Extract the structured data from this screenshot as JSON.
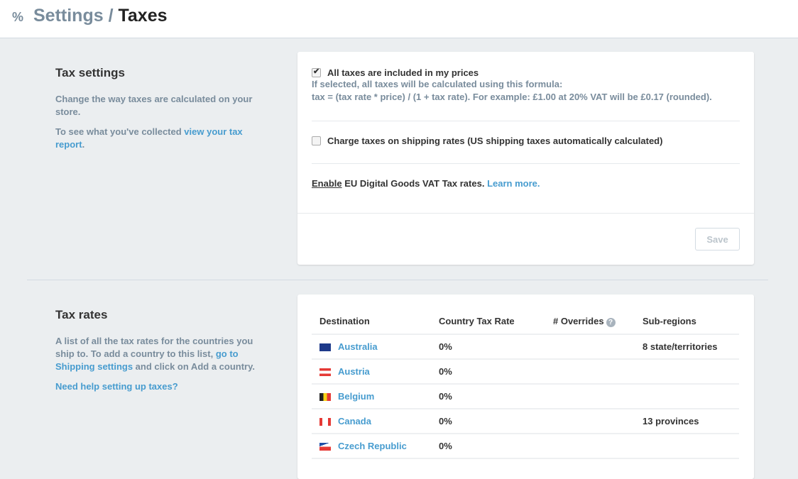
{
  "header": {
    "icon": "percent-icon",
    "crumb": "Settings",
    "separator": "/",
    "current": "Taxes"
  },
  "tax_settings": {
    "title": "Tax settings",
    "desc": "Change the way taxes are calculated on your store.",
    "collected_prefix": "To see what you've collected ",
    "collected_link": "view your tax report",
    "collected_suffix": "."
  },
  "options": {
    "included": {
      "label": "All taxes are included in my prices",
      "checked": true,
      "help1": "If selected, all taxes will be calculated using this formula:",
      "help2": "tax = (tax rate * price) / (1 + tax rate). For example: £1.00 at 20% VAT will be £0.17 (rounded)."
    },
    "shipping": {
      "label": "Charge taxes on shipping rates (US shipping taxes automatically calculated)",
      "checked": false
    },
    "eu": {
      "enable": "Enable",
      "text": " EU Digital Goods VAT Tax rates. ",
      "learn": "Learn more."
    },
    "save": "Save"
  },
  "tax_rates": {
    "title": "Tax rates",
    "desc_prefix": "A list of all the tax rates for the countries you ship to. To add a country to this list, ",
    "desc_link": "go to Shipping settings",
    "desc_suffix": " and click on Add a country.",
    "help_link": "Need help setting up taxes?"
  },
  "table": {
    "headers": [
      "Destination",
      "Country Tax Rate",
      "# Overrides",
      "Sub-regions"
    ],
    "rows": [
      {
        "country": "Australia",
        "rate": "0%",
        "overrides": "",
        "subregions": "8 state/territories"
      },
      {
        "country": "Austria",
        "rate": "0%",
        "overrides": "",
        "subregions": ""
      },
      {
        "country": "Belgium",
        "rate": "0%",
        "overrides": "",
        "subregions": ""
      },
      {
        "country": "Canada",
        "rate": "0%",
        "overrides": "",
        "subregions": "13 provinces"
      },
      {
        "country": "Czech Republic",
        "rate": "0%",
        "overrides": "",
        "subregions": ""
      }
    ]
  },
  "colors": {
    "link": "#479ccf",
    "muted": "#798c9c",
    "background": "#ebeef0"
  }
}
